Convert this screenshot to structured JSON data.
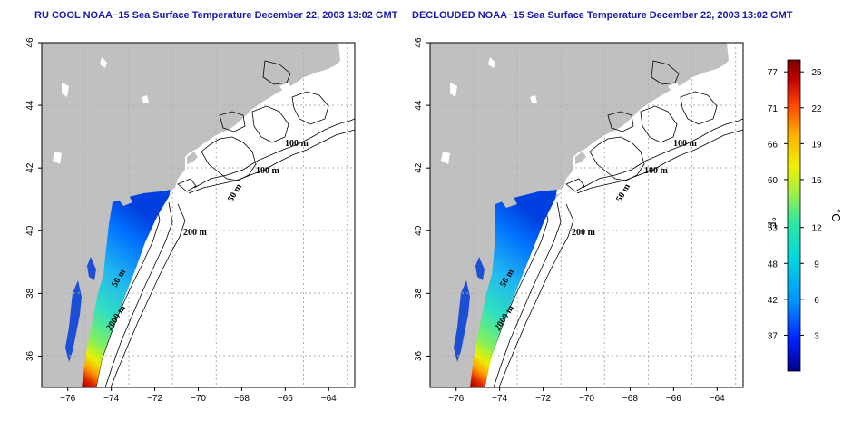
{
  "panels": [
    {
      "title": "RU COOL NOAA−15 Sea Surface Temperature December 22, 2003 13:02 GMT",
      "contour_labels": [
        "100 m",
        "100 m",
        "50 m",
        "200 m",
        "50 m",
        "2000 m"
      ]
    },
    {
      "title": "DECLOUDED NOAA−15 Sea Surface Temperature December 22, 2003 13:02 GMT",
      "contour_labels": [
        "100 m",
        "100 m",
        "50 m",
        "200 m",
        "50 m",
        "2000 m"
      ]
    }
  ],
  "axes": {
    "lon_ticks": [
      "−76",
      "−74",
      "−72",
      "−70",
      "−68",
      "−66",
      "−64"
    ],
    "lat_ticks": [
      "46",
      "44",
      "42",
      "40",
      "38",
      "36"
    ],
    "lon_values": [
      -76,
      -74,
      -72,
      -70,
      -68,
      -66,
      -64
    ],
    "lat_values": [
      46,
      44,
      42,
      40,
      38,
      36
    ],
    "lon_range": [
      -77.2,
      -62.8
    ],
    "lat_range": [
      35,
      46
    ]
  },
  "colorbar": {
    "fahrenheit_label": "°F",
    "celsius_label": "°C",
    "fahrenheit_ticks": [
      "77",
      "71",
      "66",
      "60",
      "53",
      "48",
      "42",
      "37"
    ],
    "celsius_ticks": [
      "25",
      "22",
      "19",
      "16",
      "12",
      "9",
      "6",
      "3"
    ],
    "celsius_values": [
      25,
      22,
      19,
      16,
      12,
      9,
      6,
      3
    ],
    "celsius_range": [
      0,
      26
    ],
    "colors": [
      "#00008b",
      "#0020ff",
      "#0090ff",
      "#00d8e0",
      "#30e8a0",
      "#a8f040",
      "#f0f000",
      "#ffb000",
      "#ff4000",
      "#c00000",
      "#7a0000"
    ]
  },
  "colors": {
    "land": "#c0c0c0",
    "contour": "#000000",
    "grid": "#b0b0b0",
    "title": "#1a1aa6"
  }
}
